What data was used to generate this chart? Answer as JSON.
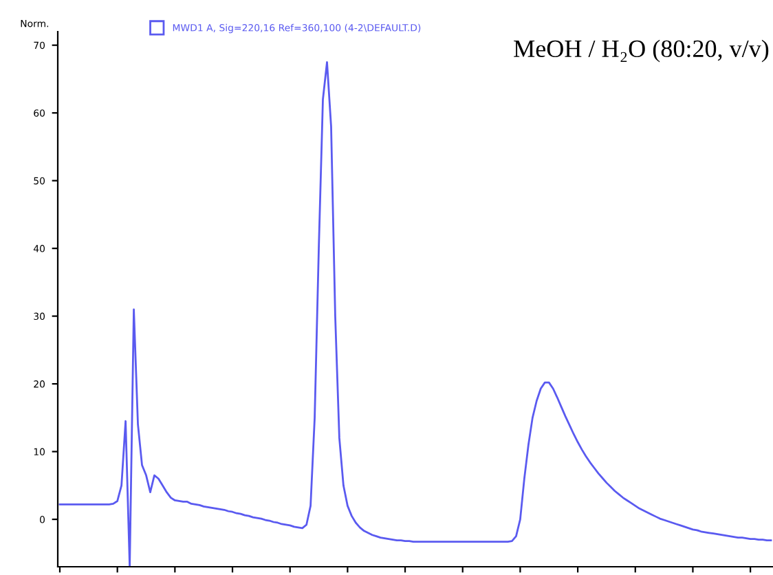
{
  "chart_data": {
    "type": "line",
    "ylabel": "Norm.",
    "annotations": [
      "MeOH / H₂O (80:20, v/v)"
    ],
    "categories": [
      null,
      null,
      null,
      null,
      null,
      null,
      null,
      null,
      null,
      null,
      null,
      null,
      null,
      null,
      null,
      null,
      null,
      null,
      null,
      null,
      null,
      null,
      null,
      null,
      null,
      null,
      null,
      null,
      null,
      null,
      null,
      null,
      null,
      null,
      null,
      null,
      null,
      null,
      null,
      null,
      null,
      null,
      null,
      null,
      null,
      null,
      null,
      null,
      null,
      null,
      null,
      null,
      null,
      null,
      null,
      null,
      null,
      null,
      null,
      null,
      null,
      null,
      null,
      null,
      null,
      null,
      null,
      null,
      null,
      null,
      null,
      null,
      null,
      null,
      null,
      null,
      null,
      null,
      null,
      null,
      null,
      null,
      null,
      null,
      null,
      null,
      null,
      null,
      null,
      null,
      null,
      null,
      null,
      null,
      null,
      null,
      null,
      null,
      null,
      null,
      null,
      null,
      null,
      null,
      null,
      null,
      null,
      null,
      null,
      null,
      null,
      null,
      null,
      null,
      null,
      null,
      null,
      null,
      null,
      null,
      null,
      null,
      null,
      null,
      null,
      null,
      null,
      null,
      null,
      null,
      null,
      null,
      null,
      null,
      null,
      null,
      null,
      null,
      null,
      null,
      null,
      null,
      null,
      null,
      null,
      null,
      null,
      null,
      null,
      null,
      null,
      null,
      null,
      null,
      null,
      null,
      null,
      null,
      null,
      null,
      null,
      null,
      null,
      null,
      null,
      null,
      null,
      null,
      null,
      null,
      null,
      null,
      null,
      null
    ],
    "series": [
      {
        "name": "MWD1 A, Sig=220,16 Ref=360,100 (4-2\\DEFAULT.D)",
        "color": "#5a5af0",
        "values": [
          2.2,
          2.2,
          2.2,
          2.2,
          2.2,
          2.2,
          2.2,
          2.2,
          2.2,
          2.2,
          2.2,
          2.2,
          2.2,
          2.3,
          2.7,
          5,
          14.5,
          -7,
          31,
          14,
          8,
          6.5,
          4,
          6.5,
          6,
          5,
          4,
          3.2,
          2.8,
          2.7,
          2.6,
          2.6,
          2.3,
          2.2,
          2.1,
          1.9,
          1.8,
          1.7,
          1.6,
          1.5,
          1.4,
          1.2,
          1.1,
          0.9,
          0.8,
          0.6,
          0.5,
          0.3,
          0.2,
          0.1,
          -0.1,
          -0.2,
          -0.4,
          -0.5,
          -0.7,
          -0.8,
          -0.9,
          -1.1,
          -1.2,
          -1.3,
          -0.8,
          2,
          15,
          40,
          62,
          67.5,
          58,
          30,
          12,
          5,
          2,
          0.5,
          -0.5,
          -1.2,
          -1.7,
          -2,
          -2.3,
          -2.5,
          -2.7,
          -2.8,
          -2.9,
          -3,
          -3.1,
          -3.1,
          -3.2,
          -3.2,
          -3.3,
          -3.3,
          -3.3,
          -3.3,
          -3.3,
          -3.3,
          -3.3,
          -3.3,
          -3.3,
          -3.3,
          -3.3,
          -3.3,
          -3.3,
          -3.3,
          -3.3,
          -3.3,
          -3.3,
          -3.3,
          -3.3,
          -3.3,
          -3.3,
          -3.3,
          -3.3,
          -3.3,
          -3.2,
          -2.5,
          0,
          6,
          11,
          15,
          17.5,
          19.3,
          20.2,
          20.2,
          19.3,
          18,
          16.6,
          15.2,
          13.9,
          12.6,
          11.4,
          10.3,
          9.3,
          8.4,
          7.6,
          6.8,
          6.1,
          5.4,
          4.8,
          4.2,
          3.7,
          3.2,
          2.8,
          2.4,
          2,
          1.6,
          1.3,
          1,
          0.7,
          0.4,
          0.1,
          -0.1,
          -0.3,
          -0.5,
          -0.7,
          -0.9,
          -1.1,
          -1.3,
          -1.5,
          -1.6,
          -1.8,
          -1.9,
          -2,
          -2.1,
          -2.2,
          -2.3,
          -2.4,
          -2.5,
          -2.6,
          -2.7,
          -2.7,
          -2.8,
          -2.9,
          -2.9,
          -3,
          -3,
          -3.1,
          -3.1
        ]
      }
    ],
    "ylim": [
      -7,
      72
    ],
    "yticks": [
      0,
      10,
      20,
      30,
      40,
      50,
      60,
      70
    ],
    "tick_labels": "y",
    "grid": false,
    "legend": "top left",
    "marker": "none",
    "line_style": "solid"
  }
}
